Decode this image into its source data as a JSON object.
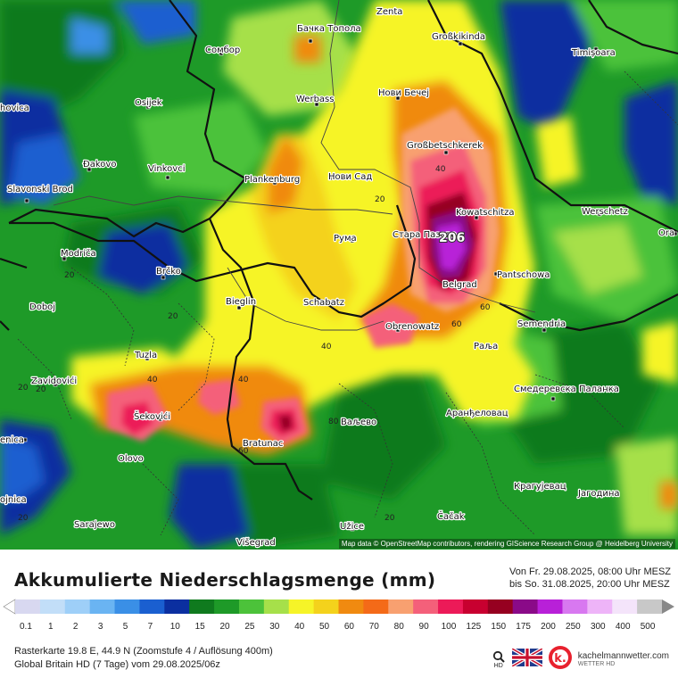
{
  "map": {
    "cities": [
      {
        "id": "zenta",
        "name": "Zenta"
      },
      {
        "id": "backa-topola",
        "name": "Бачка Топола"
      },
      {
        "id": "sombor",
        "name": "Сомбор"
      },
      {
        "id": "grossbikinda",
        "name": "Großkikinda"
      },
      {
        "id": "timisoara",
        "name": "Timișoara"
      },
      {
        "id": "novi-becej",
        "name": "Нови Бечеј"
      },
      {
        "id": "werbass",
        "name": "Werbass"
      },
      {
        "id": "osijek",
        "name": "Osijek"
      },
      {
        "id": "vinkovci",
        "name": "Vinkovci"
      },
      {
        "id": "dakovo",
        "name": "Đakovo"
      },
      {
        "id": "slavonski-brod",
        "name": "Slavonski Brod"
      },
      {
        "id": "grossbetschkerek",
        "name": "Großbetschkerek"
      },
      {
        "id": "plankenburg",
        "name": "Plankenburg"
      },
      {
        "id": "novi-sad",
        "name": "Нови Сад"
      },
      {
        "id": "kowatschitza",
        "name": "Kowatschitza"
      },
      {
        "id": "werschetz",
        "name": "Werschetz"
      },
      {
        "id": "stara-pazova",
        "name": "Стара Пазова"
      },
      {
        "id": "ruma",
        "name": "Рума"
      },
      {
        "id": "modrica",
        "name": "Modriča"
      },
      {
        "id": "brcko",
        "name": "Brčko"
      },
      {
        "id": "pantschowa",
        "name": "Pantschowa"
      },
      {
        "id": "bieglin",
        "name": "Bieglin"
      },
      {
        "id": "schabatz",
        "name": "Schabatz"
      },
      {
        "id": "belgrad",
        "name": "Belgrad"
      },
      {
        "id": "doboj",
        "name": "Doboj"
      },
      {
        "id": "obrenowatz",
        "name": "Obrenowatz"
      },
      {
        "id": "semendria",
        "name": "Semendria"
      },
      {
        "id": "ralja",
        "name": "Раља"
      },
      {
        "id": "tuzla",
        "name": "Tuzla"
      },
      {
        "id": "zavidovici",
        "name": "Zavidovići"
      },
      {
        "id": "smederevska-palanka",
        "name": "Смедеревска Паланка"
      },
      {
        "id": "sekovici",
        "name": "Šekovići"
      },
      {
        "id": "valjevo",
        "name": "Ваљево"
      },
      {
        "id": "arandjelovac",
        "name": "Аранђеловац"
      },
      {
        "id": "bratunac",
        "name": "Bratunac"
      },
      {
        "id": "olovo",
        "name": "Olovo"
      },
      {
        "id": "kragujevac",
        "name": "Крагујевац"
      },
      {
        "id": "jagodina",
        "name": "Јагодина"
      },
      {
        "id": "sarajewo",
        "name": "Sarajewo"
      },
      {
        "id": "uzice",
        "name": "Užice"
      },
      {
        "id": "cacak",
        "name": "Čačak"
      },
      {
        "id": "visegrad",
        "name": "Višegrad"
      },
      {
        "id": "ora",
        "name": "Ora"
      },
      {
        "id": "hovica",
        "name": "hovica"
      },
      {
        "id": "enica",
        "name": "enica"
      },
      {
        "id": "ojnica",
        "name": "ojnica"
      }
    ],
    "contour_labels": [
      "20",
      "20",
      "20",
      "20",
      "40",
      "40",
      "40",
      "40",
      "60",
      "60",
      "60",
      "80",
      "20",
      "20",
      "20"
    ],
    "max_value": "206",
    "attribution": "Map data © OpenStreetMap contributors, rendering GIScience Research Group @ Heidelberg University"
  },
  "legend": {
    "title": "Akkumulierte Niederschlagsmenge (mm)",
    "period_from": "Von Fr. 29.08.2025, 08:00 Uhr MESZ",
    "period_to": "bis So. 31.08.2025, 20:00 Uhr MESZ",
    "scale": [
      {
        "label": "0.1",
        "color": "#d8d8f0"
      },
      {
        "label": "1",
        "color": "#c2def8"
      },
      {
        "label": "2",
        "color": "#9ecff8"
      },
      {
        "label": "3",
        "color": "#6ab4f2"
      },
      {
        "label": "5",
        "color": "#3a8fe6"
      },
      {
        "label": "7",
        "color": "#1a5fd0"
      },
      {
        "label": "10",
        "color": "#0b2fa0"
      },
      {
        "label": "15",
        "color": "#0f7a1e"
      },
      {
        "label": "20",
        "color": "#1e9a28"
      },
      {
        "label": "25",
        "color": "#4cc23a"
      },
      {
        "label": "30",
        "color": "#a6e04a"
      },
      {
        "label": "40",
        "color": "#f6f428"
      },
      {
        "label": "50",
        "color": "#f4d21c"
      },
      {
        "label": "60",
        "color": "#f08a10"
      },
      {
        "label": "70",
        "color": "#f46a18"
      },
      {
        "label": "80",
        "color": "#f8a070"
      },
      {
        "label": "90",
        "color": "#f4607a"
      },
      {
        "label": "100",
        "color": "#ec1a58"
      },
      {
        "label": "125",
        "color": "#c80030"
      },
      {
        "label": "150",
        "color": "#960020"
      },
      {
        "label": "175",
        "color": "#8a0a88"
      },
      {
        "label": "200",
        "color": "#b820d8"
      },
      {
        "label": "250",
        "color": "#d878f0"
      },
      {
        "label": "300",
        "color": "#eeb4f8"
      },
      {
        "label": "400",
        "color": "#f4e4fa"
      },
      {
        "label": "500",
        "color": "#c8c8c8"
      }
    ]
  },
  "info": {
    "line1": "Rasterkarte 19.8 E, 44.9 N (Zoomstufe 4 / Auflösung 400m)",
    "line2": "Global Britain HD (7 Tage) vom 29.08.2025/06z"
  },
  "brand": {
    "name": "kachelmannwetter.com",
    "sub": "WETTER HD",
    "hd_label": "HD"
  }
}
